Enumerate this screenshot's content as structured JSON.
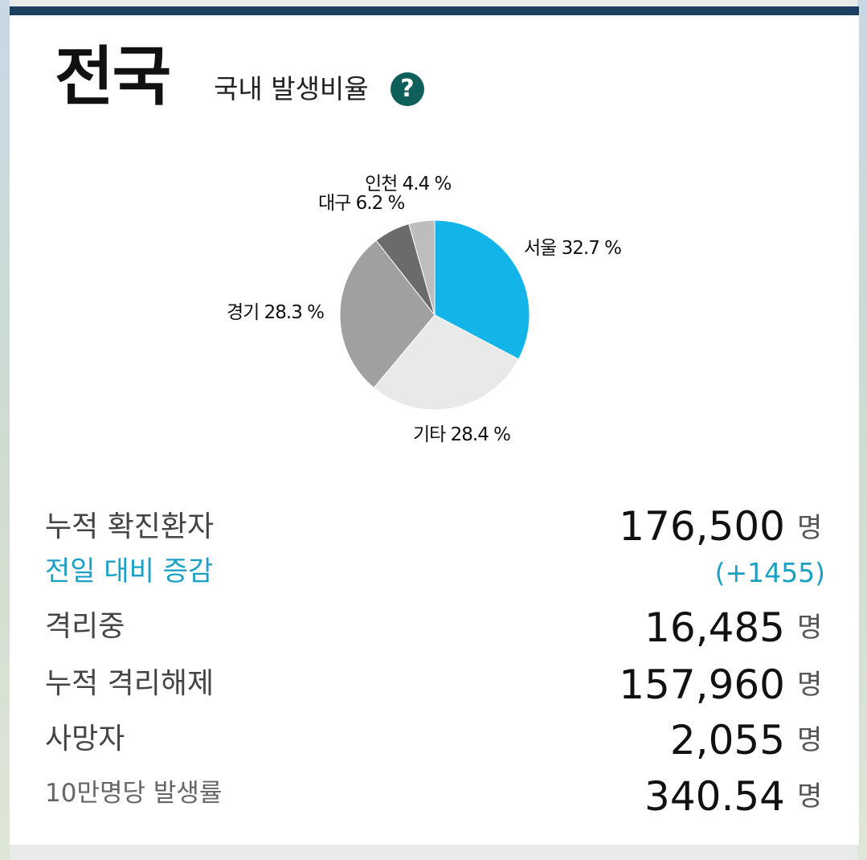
{
  "header": {
    "title": "전국",
    "subtitle": "국내 발생비율",
    "help_label": "?"
  },
  "chart_data": {
    "type": "pie",
    "slices": [
      {
        "label": "서울",
        "value": 32.7,
        "text": "서울 32.7 %",
        "color": "#13b4e8"
      },
      {
        "label": "기타",
        "value": 28.4,
        "text": "기타 28.4 %",
        "color": "#e8e9e9"
      },
      {
        "label": "경기",
        "value": 28.3,
        "text": "경기 28.3 %",
        "color": "#a0a0a0"
      },
      {
        "label": "대구",
        "value": 6.2,
        "text": "대구 6.2 %",
        "color": "#6b6b6b"
      },
      {
        "label": "인천",
        "value": 4.4,
        "text": "인천 4.4 %",
        "color": "#bdbdbd"
      }
    ]
  },
  "stats": {
    "cumulative": {
      "label": "누적 확진환자",
      "value": "176,500",
      "unit": "명"
    },
    "change": {
      "label": "전일 대비 증감",
      "value": "(+1455)"
    },
    "isolated": {
      "label": "격리중",
      "value": "16,485",
      "unit": "명"
    },
    "released": {
      "label": "누적 격리해제",
      "value": "157,960",
      "unit": "명"
    },
    "deaths": {
      "label": "사망자",
      "value": "2,055",
      "unit": "명"
    },
    "rate": {
      "label": "10만명당 발생률",
      "value": "340.54",
      "unit": "명"
    }
  }
}
